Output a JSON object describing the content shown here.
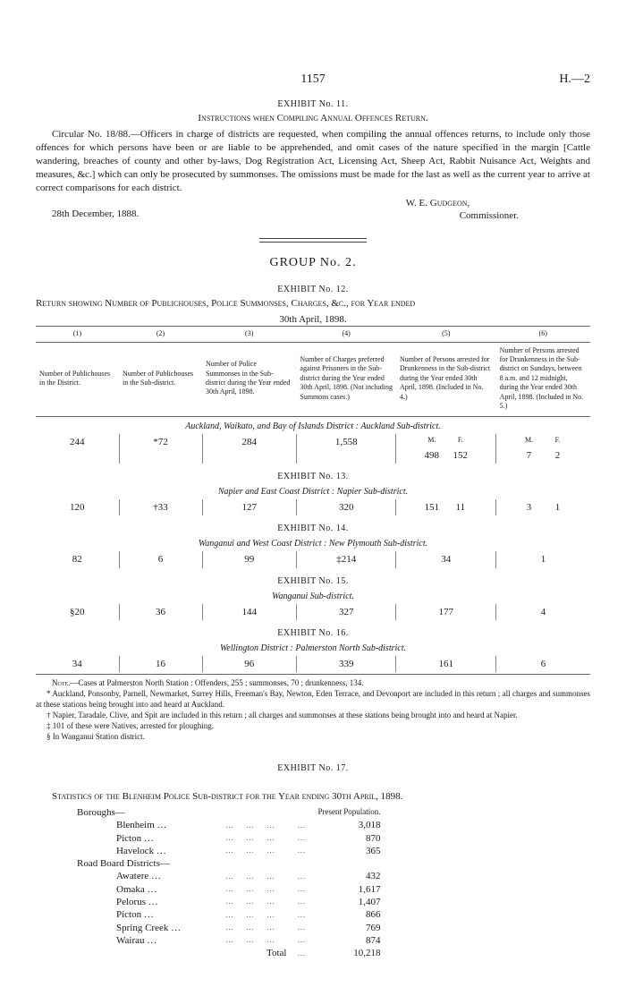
{
  "page": {
    "number": "1157",
    "doc_ref": "H.—2"
  },
  "exhibit11": {
    "title": "EXHIBIT No. 11.",
    "subtitle": "Instructions when Compiling Annual Offences Return.",
    "paragraph": "Circular No. 18/88.—Officers in charge of districts are requested, when compiling the annual offences returns, to include only those offences for which persons have been or are liable to be apprehended, and omit cases of the nature specified in the margin [Cattle wandering, breaches of county and other by-laws, Dog Registration Act, Licensing Act, Sheep Act, Rabbit Nuisance Act, Weights and measures, &c.] which can only be prosecuted by summonses. The omissions must be made for the last as well as the current year to arrive at correct comparisons for each district.",
    "signer_name": "W. E. Gudgeon,",
    "signer_title": "Commissioner.",
    "date": "28th December, 1888."
  },
  "group_title": "GROUP No. 2.",
  "exhibit12": {
    "title": "EXHIBIT No. 12.",
    "subtitle_a": "Return showing Number of Publichouses, Police Summonses, Charges, &c., for Year ended",
    "subtitle_b": "30th April, 1898.",
    "columns": [
      {
        "n": "(1)",
        "text": "Number of Publichouses in the District."
      },
      {
        "n": "(2)",
        "text": "Number of Publichouses in the Sub-district."
      },
      {
        "n": "(3)",
        "text": "Number of Police Summonses in the Sub-district during the Year ended 30th April, 1898."
      },
      {
        "n": "(4)",
        "text": "Number of Charges preferred against Prisoners in the Sub-district during the Year ended 30th April, 1898. (Not including Summons cases.)"
      },
      {
        "n": "(5)",
        "text": "Number of Persons arrested for Drunkenness in the Sub-district during the Year ended 30th April, 1898. (Included in No. 4.)"
      },
      {
        "n": "(6)",
        "text": "Number of Persons arrested for Drunkenness in the Sub-district on Sundays, between 8 a.m. and 12 midnight, during the Year ended 30th April, 1898. (Included in No. 5.)"
      }
    ],
    "sections": [
      {
        "exhibit": "",
        "district": "Auckland, Waikato, and Bay of Islands District : Auckland Sub-district.",
        "c1": "244",
        "c2": "*72",
        "c3": "284",
        "c4": "1,558",
        "c5m": "498",
        "c5f": "152",
        "c6m": "7",
        "c6f": "2",
        "mf_header": true
      },
      {
        "exhibit": "EXHIBIT No. 13.",
        "district": "Napier and East Coast District : Napier Sub-district.",
        "c1": "120",
        "c2": "†33",
        "c3": "127",
        "c4": "320",
        "c5m": "151",
        "c5f": "11",
        "c6m": "3",
        "c6f": "1"
      },
      {
        "exhibit": "EXHIBIT No. 14.",
        "district": "Wanganui and West Coast District : New Plymouth Sub-district.",
        "c1": "82",
        "c2": "6",
        "c3": "99",
        "c4": "‡214",
        "c5": "34",
        "c6": "1"
      },
      {
        "exhibit": "EXHIBIT No. 15.",
        "district": "Wanganui Sub-district.",
        "c1": "§20",
        "c2": "36",
        "c3": "144",
        "c4": "327",
        "c5": "177",
        "c6": "4"
      },
      {
        "exhibit": "EXHIBIT No. 16.",
        "district": "Wellington District : Palmerston North Sub-district.",
        "c1": "34",
        "c2": "16",
        "c3": "96",
        "c4": "339",
        "c5": "161",
        "c6": "6"
      }
    ],
    "notes": [
      "Note.—Cases at Palmerston North Station : Offenders, 255 ; summonses, 70 ; drunkenness, 134.",
      "* Auckland, Ponsonby, Parnell, Newmarket, Surrey Hills, Freeman's Bay, Newton, Eden Terrace, and Devonport are included in this return ; all charges and summonses at these stations being brought into and heard at Auckland.",
      "† Napier, Taradale, Clive, and Spit are included in this return ; all charges and summonses at these stations being brought into and heard at Napier.",
      "‡ 101 of these were Natives, arrested for ploughing.",
      "§ In Wanganui Station district."
    ]
  },
  "exhibit17": {
    "title": "EXHIBIT No. 17.",
    "subtitle": "Statistics of the Blenheim Police Sub-district for the Year ending 30th April, 1898.",
    "pop_header": "Present Population.",
    "boroughs_label": "Boroughs—",
    "boroughs": [
      {
        "name": "Blenheim",
        "pop": "3,018"
      },
      {
        "name": "Picton",
        "pop": "870"
      },
      {
        "name": "Havelock",
        "pop": "365"
      }
    ],
    "roadboard_label": "Road Board Districts—",
    "roadboards": [
      {
        "name": "Awatere",
        "pop": "432"
      },
      {
        "name": "Omaka",
        "pop": "1,617"
      },
      {
        "name": "Pelorus",
        "pop": "1,407"
      },
      {
        "name": "Picton",
        "pop": "866"
      },
      {
        "name": "Spring Creek",
        "pop": "769"
      },
      {
        "name": "Wairau",
        "pop": "874"
      }
    ],
    "total_label": "Total",
    "total_value": "10,218"
  },
  "mf_labels": {
    "m": "M.",
    "f": "F."
  }
}
